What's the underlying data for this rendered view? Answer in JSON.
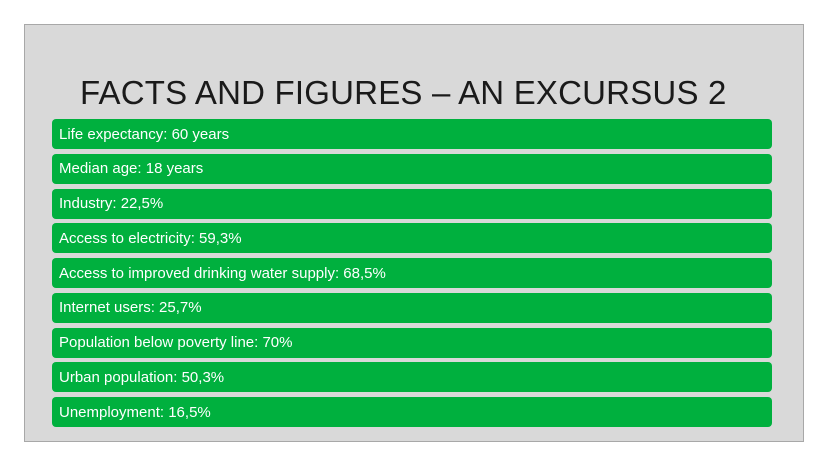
{
  "slide": {
    "title": "FACTS AND FIGURES – AN EXCURSUS 2",
    "items": [
      "Life expectancy: 60 years",
      "Median age: 18 years",
      "Industry: 22,5%",
      "Access to electricity: 59,3%",
      "Access to improved drinking water supply: 68,5%",
      "Internet users: 25,7%",
      "Population below poverty line: 70%",
      "Urban population: 50,3%",
      "Unemployment: 16,5%"
    ]
  },
  "colors": {
    "background": "#d9d9d9",
    "item_fill": "#00b03e",
    "item_text": "#ffffff",
    "title_text": "#1a1a1a"
  }
}
